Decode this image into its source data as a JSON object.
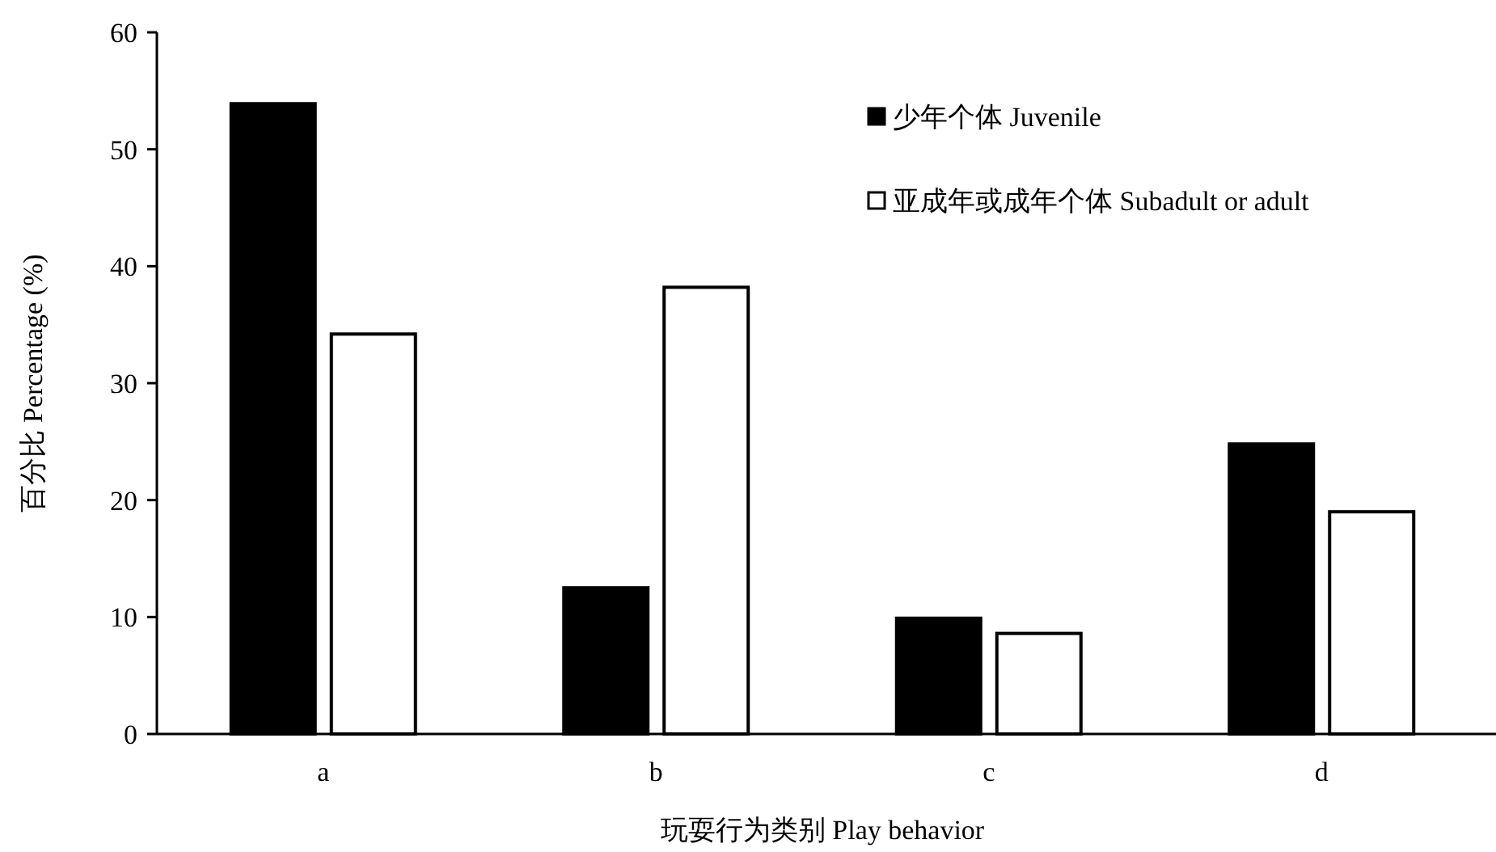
{
  "chart_data": {
    "type": "bar",
    "xlabel": "玩耍行为类别 Play behavior",
    "ylabel": "百分比 Percentage (%)",
    "categories": [
      "a",
      "b",
      "c",
      "d"
    ],
    "series": [
      {
        "name": "少年个体 Juvenile",
        "color": "#000000",
        "values": [
          53.9,
          12.5,
          9.9,
          24.8
        ]
      },
      {
        "name": "亚成年或成年个体 Subadult or adult",
        "color": "#ffffff",
        "values": [
          34.2,
          38.2,
          8.6,
          19.0
        ]
      }
    ],
    "ylim": [
      0,
      60
    ],
    "yticks": [
      0,
      10,
      20,
      30,
      40,
      50,
      60
    ],
    "legend": "top right",
    "grid": false
  }
}
